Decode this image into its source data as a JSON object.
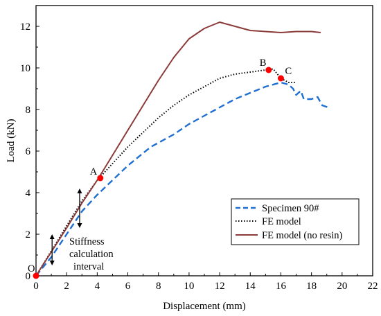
{
  "chart_data": {
    "type": "line",
    "title": "",
    "xlabel": "Displacement (mm)",
    "ylabel": "Load (kN)",
    "xlim": [
      0,
      22
    ],
    "ylim": [
      0,
      13
    ],
    "xticks": [
      0,
      2,
      4,
      6,
      8,
      10,
      12,
      14,
      16,
      18,
      20,
      22
    ],
    "yticks": [
      0,
      2,
      4,
      6,
      8,
      10,
      12
    ],
    "grid": false,
    "legend_position": "bottom-right",
    "series": [
      {
        "name": "Specimen 90#",
        "color": "#1f6fd1",
        "style": "dashed",
        "points": [
          [
            0,
            0
          ],
          [
            1,
            0.9
          ],
          [
            2,
            2.0
          ],
          [
            3,
            3.1
          ],
          [
            4,
            3.9
          ],
          [
            5,
            4.6
          ],
          [
            6,
            5.3
          ],
          [
            7,
            5.9
          ],
          [
            7.5,
            6.2
          ],
          [
            8,
            6.4
          ],
          [
            9,
            6.8
          ],
          [
            10,
            7.3
          ],
          [
            11,
            7.7
          ],
          [
            12,
            8.1
          ],
          [
            13,
            8.5
          ],
          [
            14,
            8.8
          ],
          [
            15,
            9.1
          ],
          [
            16,
            9.3
          ],
          [
            16.5,
            9.2
          ],
          [
            16.8,
            9.0
          ],
          [
            17,
            8.7
          ],
          [
            17.3,
            8.9
          ],
          [
            17.5,
            8.5
          ],
          [
            18,
            8.5
          ],
          [
            18.4,
            8.6
          ],
          [
            18.7,
            8.2
          ],
          [
            19.1,
            8.1
          ]
        ]
      },
      {
        "name": "FE model",
        "color": "#000000",
        "style": "dotted",
        "points": [
          [
            0,
            0
          ],
          [
            1,
            1.2
          ],
          [
            2,
            2.4
          ],
          [
            3,
            3.6
          ],
          [
            4,
            4.6
          ],
          [
            5,
            5.4
          ],
          [
            6,
            6.2
          ],
          [
            7,
            6.9
          ],
          [
            8,
            7.6
          ],
          [
            9,
            8.2
          ],
          [
            10,
            8.7
          ],
          [
            11,
            9.1
          ],
          [
            12,
            9.5
          ],
          [
            13,
            9.7
          ],
          [
            14,
            9.8
          ],
          [
            15,
            9.9
          ],
          [
            15.5,
            9.95
          ],
          [
            16,
            9.5
          ],
          [
            16.5,
            9.3
          ],
          [
            17,
            9.3
          ]
        ]
      },
      {
        "name": "FE model (no resin)",
        "color": "#8b3a3a",
        "style": "solid",
        "points": [
          [
            0,
            0
          ],
          [
            1,
            1.15
          ],
          [
            2,
            2.3
          ],
          [
            3,
            3.5
          ],
          [
            4,
            4.6
          ],
          [
            5,
            5.8
          ],
          [
            6,
            7.0
          ],
          [
            7,
            8.2
          ],
          [
            8,
            9.4
          ],
          [
            9,
            10.5
          ],
          [
            10,
            11.4
          ],
          [
            11,
            11.9
          ],
          [
            12,
            12.2
          ],
          [
            13,
            12.0
          ],
          [
            14,
            11.8
          ],
          [
            15,
            11.75
          ],
          [
            16,
            11.7
          ],
          [
            17,
            11.75
          ],
          [
            18,
            11.75
          ],
          [
            18.6,
            11.7
          ]
        ]
      }
    ],
    "markers": [
      {
        "label": "O",
        "x": 0,
        "y": 0
      },
      {
        "label": "A",
        "x": 4.2,
        "y": 4.7
      },
      {
        "label": "B",
        "x": 15.2,
        "y": 9.9
      },
      {
        "label": "C",
        "x": 16.0,
        "y": 9.5
      }
    ],
    "marker_color": "#ff0000",
    "annotations": {
      "stiffness_lines": [
        "Stiffness",
        "calculation",
        "interval"
      ]
    }
  }
}
